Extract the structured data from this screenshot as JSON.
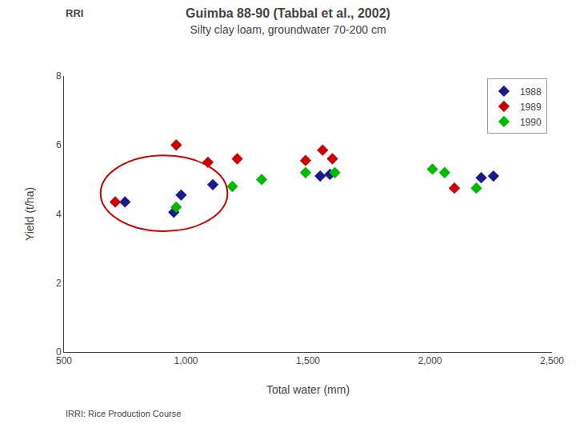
{
  "chart_data": {
    "type": "scatter",
    "title": "Guimba 88-90 (Tabbal et al., 2002)",
    "subtitle": "Silty clay loam, groundwater 70-200 cm",
    "xlabel": "Total water (mm)",
    "ylabel": "Yield (t/ha)",
    "annotations": [
      "RRI",
      "IRRI: Rice Production Course"
    ],
    "xlim": [
      500,
      2500
    ],
    "ylim": [
      0,
      8
    ],
    "xticks": [
      500,
      {
        "value": 1000,
        "label": "1,000"
      },
      {
        "value": 1500,
        "label": "1,500"
      },
      {
        "value": 2000,
        "label": "2,000"
      },
      {
        "value": 2500,
        "label": "2,500"
      }
    ],
    "yticks": [
      0,
      2,
      4,
      6,
      8
    ],
    "grid": false,
    "legend": "upper right",
    "marker": "diamond",
    "series": [
      {
        "name": "1988",
        "color": "#1a1a8c",
        "x": [
          750,
          950,
          980,
          1110,
          1550,
          1590,
          2210,
          2260
        ],
        "values": [
          4.35,
          4.05,
          4.55,
          4.85,
          5.1,
          5.15,
          5.05,
          5.1
        ]
      },
      {
        "name": "1989",
        "color": "#cc0000",
        "x": [
          710,
          960,
          1090,
          1210,
          1490,
          1560,
          1600,
          2100
        ],
        "values": [
          4.35,
          6.0,
          5.5,
          5.6,
          5.55,
          5.85,
          5.6,
          4.75
        ]
      },
      {
        "name": "1990",
        "color": "#00bb00",
        "x": [
          960,
          1190,
          1310,
          1490,
          1610,
          2010,
          2060,
          2190
        ],
        "values": [
          4.2,
          4.8,
          5.0,
          5.2,
          5.2,
          5.3,
          5.2,
          4.75
        ]
      }
    ],
    "ellipse": {
      "x": 910,
      "y": 4.6,
      "width": 520,
      "height": 2.2,
      "color": "#cc0000"
    }
  }
}
